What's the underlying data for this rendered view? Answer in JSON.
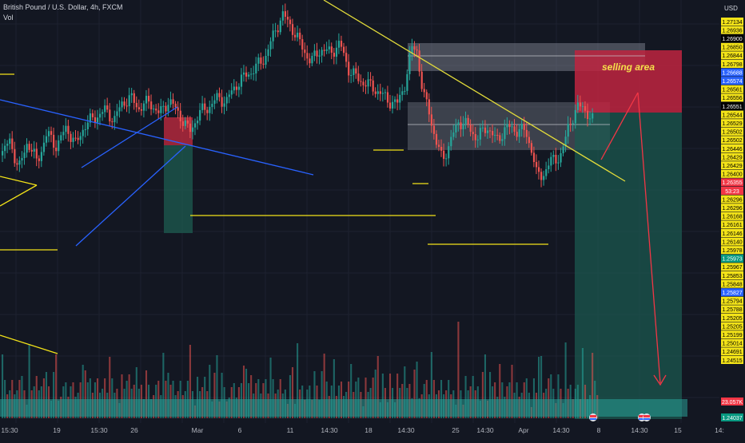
{
  "header": {
    "symbol_line": "British Pound / U.S. Dollar, 4h, FXCM",
    "volume_label": "Vol",
    "currency": "USD"
  },
  "chart_data": {
    "type": "candlestick",
    "title": "British Pound / U.S. Dollar, 4h, FXCM",
    "instrument": "GBPUSD",
    "timeframe": "4h",
    "source": "FXCM",
    "ylim": [
      1.24,
      1.2715
    ],
    "y_tick_labels": [
      "1.27134",
      "1.26936",
      "1.26900",
      "1.26850",
      "1.26844",
      "1.26798",
      "1.26688",
      "1.26574",
      "1.26561",
      "1.26556",
      "1.26551",
      "1.26544",
      "1.26529",
      "1.26502",
      "1.26502",
      "1.26446",
      "1.26429",
      "1.26429",
      "1.26400",
      "1.26355",
      "53:23",
      "1.26296",
      "1.26296",
      "1.26168",
      "1.26161",
      "1.26146",
      "1.26140",
      "1.25978",
      "1.25973",
      "1.25967",
      "1.25853",
      "1.25848",
      "1.25827",
      "1.25794",
      "1.25788",
      "1.25205",
      "1.25205",
      "1.25199",
      "1.25014",
      "1.24691",
      "1.24515",
      "23.057K",
      "1.24037"
    ],
    "x_tick_labels": [
      "15:30",
      "19",
      "15:30",
      "26",
      "Mar",
      "6",
      "11",
      "14:30",
      "18",
      "14:30",
      "25",
      "14:30",
      "Apr",
      "14:30",
      "8",
      "14:30",
      "15",
      "14:"
    ],
    "current_price": "1.26355",
    "countdown": "53:23",
    "volume_value": "23.057K",
    "annotations": [
      {
        "text": "selling area"
      }
    ],
    "price_path": [
      [
        0,
        1.2605
      ],
      [
        12,
        1.2617
      ],
      [
        22,
        1.2593
      ],
      [
        33,
        1.2616
      ],
      [
        45,
        1.26
      ],
      [
        58,
        1.2622
      ],
      [
        70,
        1.2612
      ],
      [
        82,
        1.2627
      ],
      [
        94,
        1.2613
      ],
      [
        104,
        1.2628
      ],
      [
        118,
        1.2635
      ],
      [
        130,
        1.264
      ],
      [
        142,
        1.2633
      ],
      [
        152,
        1.2646
      ],
      [
        162,
        1.265
      ],
      [
        172,
        1.2642
      ],
      [
        186,
        1.2647
      ],
      [
        198,
        1.2637
      ],
      [
        210,
        1.2648
      ],
      [
        220,
        1.264
      ],
      [
        228,
        1.2632
      ],
      [
        236,
        1.2623
      ],
      [
        248,
        1.2638
      ],
      [
        260,
        1.2643
      ],
      [
        272,
        1.265
      ],
      [
        282,
        1.2647
      ],
      [
        294,
        1.266
      ],
      [
        306,
        1.2667
      ],
      [
        318,
        1.2673
      ],
      [
        330,
        1.2681
      ],
      [
        342,
        1.27
      ],
      [
        352,
        1.2715
      ],
      [
        364,
        1.2705
      ],
      [
        376,
        1.269
      ],
      [
        388,
        1.2678
      ],
      [
        400,
        1.2688
      ],
      [
        412,
        1.2685
      ],
      [
        424,
        1.2692
      ],
      [
        436,
        1.2671
      ],
      [
        448,
        1.2664
      ],
      [
        460,
        1.266
      ],
      [
        472,
        1.2655
      ],
      [
        484,
        1.2648
      ],
      [
        496,
        1.2645
      ],
      [
        506,
        1.2662
      ],
      [
        514,
        1.2688
      ],
      [
        520,
        1.269
      ],
      [
        528,
        1.2652
      ],
      [
        536,
        1.264
      ],
      [
        544,
        1.2615
      ],
      [
        552,
        1.2603
      ],
      [
        560,
        1.2611
      ],
      [
        572,
        1.2632
      ],
      [
        584,
        1.2628
      ],
      [
        596,
        1.2618
      ],
      [
        608,
        1.2628
      ],
      [
        620,
        1.2616
      ],
      [
        632,
        1.2627
      ],
      [
        644,
        1.2625
      ],
      [
        656,
        1.2624
      ],
      [
        664,
        1.261
      ],
      [
        670,
        1.259
      ],
      [
        678,
        1.259
      ],
      [
        690,
        1.2602
      ],
      [
        702,
        1.2605
      ],
      [
        710,
        1.2629
      ],
      [
        720,
        1.264
      ],
      [
        728,
        1.2645
      ],
      [
        736,
        1.2634
      ],
      [
        742,
        1.2631
      ]
    ]
  }
}
